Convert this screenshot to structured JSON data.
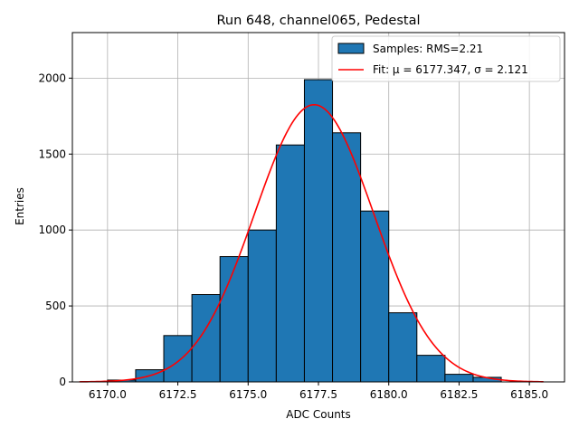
{
  "chart_data": {
    "type": "bar",
    "title": "Run 648, channel065, Pedestal",
    "xlabel": "ADC Counts",
    "ylabel": "Entries",
    "xlim": [
      6168.75,
      6186.25
    ],
    "ylim": [
      0,
      2300
    ],
    "grid": true,
    "legend_position": "top-right",
    "x_ticks": [
      {
        "value": 6170.0,
        "label": "6170.0"
      },
      {
        "value": 6172.5,
        "label": "6172.5"
      },
      {
        "value": 6175.0,
        "label": "6175.0"
      },
      {
        "value": 6177.5,
        "label": "6177.5"
      },
      {
        "value": 6180.0,
        "label": "6180.0"
      },
      {
        "value": 6182.5,
        "label": "6182.5"
      },
      {
        "value": 6185.0,
        "label": "6185.0"
      }
    ],
    "y_ticks": [
      {
        "value": 0,
        "label": "0"
      },
      {
        "value": 500,
        "label": "500"
      },
      {
        "value": 1000,
        "label": "1000"
      },
      {
        "value": 1500,
        "label": "1500"
      },
      {
        "value": 2000,
        "label": "2000"
      }
    ],
    "bin_edges": [
      6170,
      6171,
      6172,
      6173,
      6174,
      6175,
      6176,
      6177,
      6178,
      6179,
      6180,
      6181,
      6182,
      6183,
      6184
    ],
    "values": [
      12,
      80,
      305,
      575,
      825,
      1000,
      1560,
      1990,
      1640,
      1125,
      455,
      175,
      50,
      30
    ],
    "series": [
      {
        "name": "Samples: RMS=2.21",
        "kind": "histogram",
        "color": "#1f77b4",
        "edge_color": "#000000"
      },
      {
        "name": "Fit: μ = 6177.347, σ = 2.121",
        "kind": "gaussian_fit",
        "color": "#ff0000",
        "mu": 6177.347,
        "sigma": 2.121,
        "amplitude": 1825,
        "x_range": [
          6169.0,
          6185.5
        ]
      }
    ]
  }
}
